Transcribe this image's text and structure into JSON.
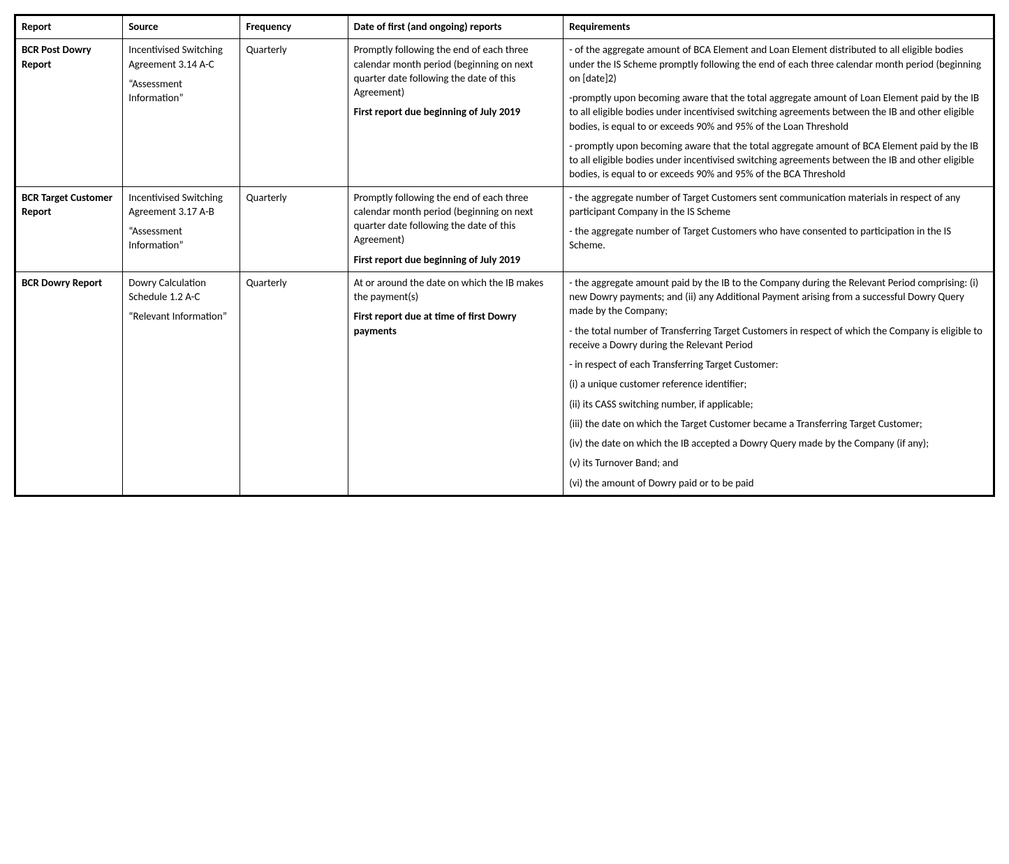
{
  "table": {
    "columns": [
      "Report",
      "Source",
      "Frequency",
      "Date of first (and ongoing) reports",
      "Requirements"
    ],
    "rows": [
      {
        "report": "BCR Post Dowry Report",
        "source_paragraphs": [
          "Incentivised Switching Agreement 3.14 A-C",
          "“Assessment Information”"
        ],
        "frequency": "Quarterly",
        "date_paragraphs": [
          {
            "text": "Promptly following the end of each three calendar month period (beginning on next quarter date following the date of this Agreement)",
            "bold": false
          },
          {
            "text": "First report due beginning of July 2019",
            "bold": true
          }
        ],
        "requirements_paragraphs": [
          "- of the aggregate amount of BCA Element and Loan Element distributed to all eligible bodies under the IS Scheme promptly following the end of each three calendar month period (beginning on [date]2)",
          "-promptly upon becoming aware that the total aggregate amount of Loan Element paid by the IB to all eligible bodies under incentivised switching agreements between the IB and other eligible bodies, is equal to or exceeds 90% and 95% of the Loan Threshold",
          "- promptly upon becoming aware that the total aggregate amount of BCA Element paid by the IB to all eligible bodies under incentivised switching agreements between the IB and other eligible bodies, is equal to or exceeds 90% and 95% of the BCA Threshold"
        ]
      },
      {
        "report": "BCR Target Customer Report",
        "source_paragraphs": [
          "Incentivised Switching Agreement 3.17 A-B",
          "“Assessment Information”"
        ],
        "frequency": "Quarterly",
        "date_paragraphs": [
          {
            "text": "Promptly following the end of each three calendar month period (beginning on next quarter date following the date of this Agreement)",
            "bold": false
          },
          {
            "text": "First report due beginning of July 2019",
            "bold": true
          }
        ],
        "requirements_paragraphs": [
          "- the aggregate number of Target Customers sent communication materials in respect of any participant Company in the IS Scheme",
          "- the aggregate number of Target Customers who have consented to participation in the IS Scheme."
        ]
      },
      {
        "report": "BCR Dowry Report",
        "source_paragraphs": [
          "Dowry Calculation Schedule 1.2 A-C",
          "“Relevant Information”"
        ],
        "frequency": "Quarterly",
        "date_paragraphs": [
          {
            "text": "At or around the date on which the IB makes the payment(s)",
            "bold": false
          },
          {
            "text": "First report due at time of first Dowry payments",
            "bold": true
          }
        ],
        "requirements_paragraphs": [
          "- the aggregate amount paid by the IB to the Company during the Relevant Period comprising: (i) new Dowry payments; and (ii) any Additional Payment arising from a successful Dowry Query made by the Company;",
          "- the total number of Transferring Target Customers in respect of which the Company is eligible to receive a Dowry during the Relevant Period",
          "- in respect of each Transferring Target Customer:",
          "(i) a unique customer reference identifier;",
          "(ii) its CASS switching number, if applicable;",
          "(iii) the date on which the Target Customer became a Transferring Target Customer;",
          "(iv) the date on which the IB accepted a Dowry Query made by the Company (if any);",
          "(v) its Turnover Band; and",
          "(vi) the amount of Dowry paid or to be paid"
        ]
      }
    ]
  }
}
